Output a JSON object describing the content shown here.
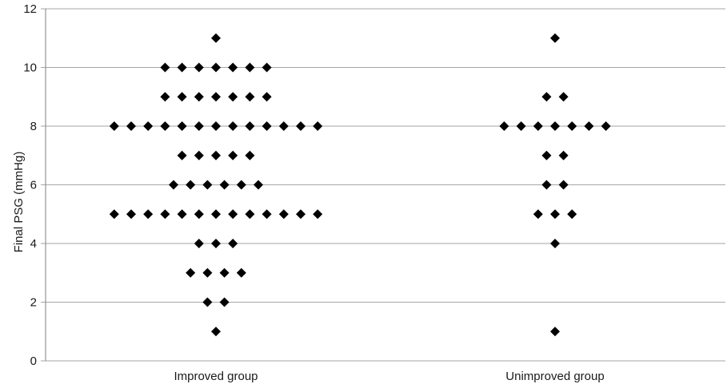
{
  "chart_data": {
    "type": "scatter",
    "title": "",
    "xlabel": "",
    "ylabel": "Final PSG (mmHg)",
    "ylim": [
      0,
      12
    ],
    "yticks": [
      0,
      2,
      4,
      6,
      8,
      10,
      12
    ],
    "grid": true,
    "legend": "none",
    "marker": "diamond",
    "marker_color": "#000000",
    "grid_color": "#a6a6a6",
    "categories": [
      "Improved group",
      "Unimproved group"
    ],
    "groups": [
      {
        "category": "Improved group",
        "rows": [
          {
            "y": 11,
            "count": 1
          },
          {
            "y": 10,
            "count": 7
          },
          {
            "y": 9,
            "count": 7
          },
          {
            "y": 8,
            "count": 13
          },
          {
            "y": 7,
            "count": 5
          },
          {
            "y": 6,
            "count": 6
          },
          {
            "y": 5,
            "count": 13
          },
          {
            "y": 4,
            "count": 3
          },
          {
            "y": 3,
            "count": 4
          },
          {
            "y": 2,
            "count": 2
          },
          {
            "y": 1,
            "count": 1
          }
        ]
      },
      {
        "category": "Unimproved group",
        "rows": [
          {
            "y": 11,
            "count": 1
          },
          {
            "y": 9,
            "count": 2
          },
          {
            "y": 8,
            "count": 7
          },
          {
            "y": 7,
            "count": 2
          },
          {
            "y": 6,
            "count": 2
          },
          {
            "y": 5,
            "count": 3
          },
          {
            "y": 4,
            "count": 1
          },
          {
            "y": 1,
            "count": 1
          }
        ]
      }
    ]
  }
}
